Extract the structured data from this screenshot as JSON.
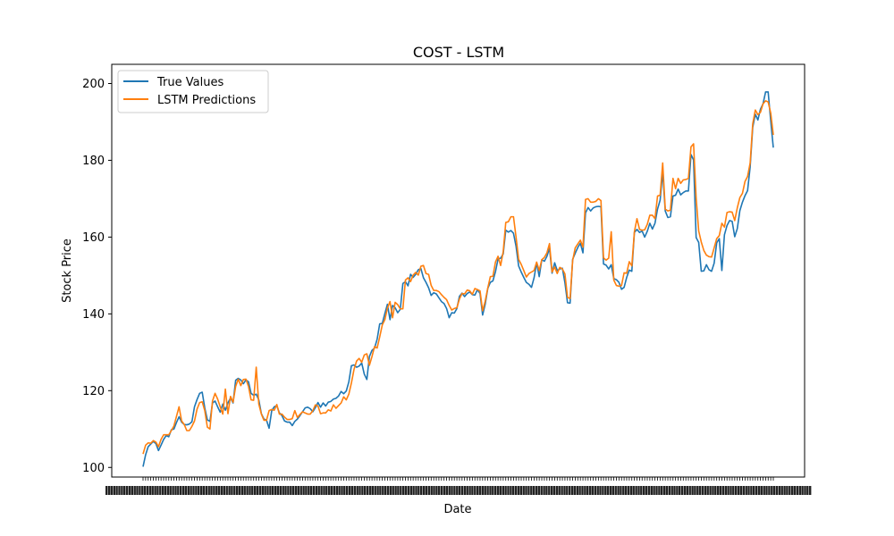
{
  "chart_data": {
    "type": "line",
    "title": "COST - LSTM",
    "xlabel": "Date",
    "ylabel": "Stock Price",
    "ylim": [
      97.5,
      205
    ],
    "yticks": [
      100,
      120,
      140,
      160,
      180,
      200
    ],
    "grid": false,
    "legend_position": "top-left",
    "x_tick_labels_note": "dense overlapping date labels, illegible",
    "series": [
      {
        "name": "True Values",
        "color": "#1f77b4",
        "values": [
          100.2,
          103.3,
          105.4,
          106.1,
          106.8,
          106.2,
          104.4,
          105.8,
          107.3,
          108.3,
          108.0,
          109.8,
          110.0,
          111.7,
          113.2,
          111.8,
          111.2,
          111.1,
          111.3,
          111.9,
          115.8,
          117.7,
          119.3,
          119.6,
          115.5,
          112.4,
          112.0,
          116.8,
          117.3,
          115.8,
          114.4,
          116.5,
          114.9,
          116.8,
          118.1,
          116.8,
          122.7,
          123.2,
          122.8,
          121.8,
          122.8,
          122.3,
          119.3,
          118.8,
          119.1,
          117.6,
          114.0,
          112.6,
          112.3,
          110.2,
          114.7,
          115.8,
          116.1,
          114.2,
          113.5,
          112.1,
          111.8,
          111.8,
          110.9,
          112.0,
          112.6,
          113.5,
          114.5,
          115.5,
          115.7,
          115.3,
          114.5,
          115.6,
          116.9,
          115.7,
          116.8,
          116.0,
          117.0,
          117.2,
          117.8,
          118.0,
          118.6,
          119.8,
          119.2,
          119.9,
          122.3,
          126.5,
          126.7,
          126.1,
          126.4,
          127.2,
          124.3,
          122.9,
          128.9,
          130.5,
          131.1,
          133.4,
          137.4,
          137.5,
          140.1,
          142.5,
          138.5,
          142.2,
          141.6,
          140.3,
          141.2,
          147.9,
          148.4,
          147.3,
          150.3,
          149.5,
          150.3,
          151.5,
          151.8,
          149.4,
          148.2,
          146.8,
          144.8,
          145.5,
          145.2,
          144.2,
          143.2,
          142.7,
          141.4,
          139.0,
          140.3,
          140.2,
          141.4,
          144.6,
          145.4,
          144.5,
          145.3,
          145.7,
          145.0,
          144.9,
          146.3,
          145.3,
          139.7,
          142.5,
          146.6,
          148.2,
          148.6,
          151.0,
          154.3,
          154.5,
          155.6,
          161.8,
          161.3,
          161.7,
          161.0,
          157.6,
          152.5,
          150.9,
          149.5,
          148.2,
          147.7,
          146.9,
          149.4,
          153.3,
          149.7,
          154.1,
          153.7,
          155.0,
          157.1,
          150.6,
          153.3,
          151.3,
          151.7,
          151.9,
          148.1,
          142.9,
          142.8,
          154.2,
          155.8,
          157.3,
          158.4,
          155.9,
          166.3,
          167.7,
          166.8,
          167.6,
          167.9,
          168.0,
          167.9,
          153.0,
          152.7,
          151.7,
          152.8,
          149.2,
          148.9,
          148.2,
          146.4,
          146.9,
          149.5,
          151.4,
          151.1,
          161.2,
          162.0,
          161.2,
          161.6,
          160.0,
          161.5,
          163.6,
          162.1,
          163.6,
          167.3,
          169.6,
          177.0,
          166.8,
          165.1,
          165.3,
          170.7,
          170.9,
          172.5,
          171.0,
          171.6,
          172.0,
          172.0,
          181.5,
          180.1,
          159.9,
          158.6,
          151.1,
          151.2,
          152.8,
          151.5,
          151.1,
          153.2,
          158.5,
          159.6,
          151.3,
          160.6,
          163.0,
          164.3,
          164.1,
          160.1,
          162.2,
          166.9,
          169.1,
          170.8,
          172.1,
          178.3,
          188.6,
          192.0,
          190.5,
          193.3,
          194.7,
          197.8,
          197.8,
          190.2,
          183.3
        ]
      },
      {
        "name": "LSTM Predictions",
        "color": "#ff7f0e",
        "values": [
          103.5,
          105.8,
          106.4,
          106.3,
          107.0,
          106.6,
          105.4,
          107.3,
          108.5,
          108.5,
          108.5,
          109.6,
          110.8,
          113.3,
          115.8,
          112.1,
          111.2,
          109.6,
          109.6,
          110.7,
          112.1,
          115.2,
          116.9,
          117.1,
          114.8,
          110.5,
          110.0,
          117.3,
          119.3,
          117.8,
          115.8,
          113.9,
          120.4,
          114.0,
          118.5,
          117.0,
          121.1,
          123.0,
          121.3,
          122.9,
          123.0,
          121.1,
          117.6,
          117.5,
          126.1,
          116.5,
          113.9,
          112.3,
          112.3,
          114.8,
          115.1,
          114.9,
          116.4,
          113.9,
          113.9,
          113.1,
          112.5,
          112.5,
          112.7,
          114.8,
          113.0,
          113.8,
          114.5,
          114.2,
          113.9,
          113.9,
          114.8,
          116.3,
          116.0,
          114.0,
          114.2,
          114.2,
          115.0,
          114.7,
          116.3,
          115.4,
          116.1,
          116.8,
          118.4,
          117.6,
          119.1,
          122.0,
          125.5,
          127.7,
          128.4,
          127.4,
          129.3,
          129.6,
          126.6,
          128.9,
          131.5,
          131.1,
          134.0,
          137.1,
          138.5,
          141.5,
          143.2,
          139.0,
          143.0,
          142.4,
          141.3,
          141.3,
          148.8,
          149.4,
          148.4,
          150.1,
          150.8,
          150.1,
          152.4,
          152.6,
          150.5,
          150.3,
          147.4,
          146.1,
          146.1,
          145.8,
          145.0,
          144.3,
          143.7,
          142.2,
          141.0,
          141.4,
          141.6,
          143.9,
          145.3,
          145.2,
          146.2,
          146.0,
          145.1,
          146.6,
          146.3,
          146.0,
          140.8,
          143.3,
          146.7,
          149.7,
          149.8,
          153.5,
          155.0,
          152.6,
          156.2,
          163.8,
          164.0,
          165.3,
          165.3,
          160.0,
          154.2,
          152.9,
          151.3,
          149.6,
          150.5,
          150.9,
          151.3,
          153.5,
          151.3,
          154.1,
          154.7,
          155.9,
          158.3,
          150.9,
          152.2,
          150.5,
          152.1,
          151.7,
          150.4,
          144.3,
          144.0,
          153.9,
          157.2,
          158.2,
          159.2,
          157.4,
          169.8,
          170.0,
          169.1,
          169.1,
          169.3,
          170.0,
          169.5,
          154.6,
          154.0,
          154.5,
          161.4,
          148.8,
          147.4,
          147.2,
          147.4,
          150.7,
          150.6,
          153.6,
          152.5,
          161.4,
          164.8,
          162.0,
          161.8,
          161.9,
          163.3,
          165.7,
          165.7,
          164.8,
          170.7,
          170.9,
          179.3,
          167.3,
          166.8,
          167.0,
          175.3,
          172.6,
          175.3,
          174.0,
          174.9,
          175.0,
          175.3,
          183.5,
          184.3,
          170.2,
          161.6,
          158.7,
          156.5,
          155.3,
          154.9,
          154.8,
          157.2,
          159.6,
          160.4,
          163.6,
          162.6,
          166.4,
          166.6,
          166.5,
          164.3,
          167.6,
          170.3,
          171.4,
          174.5,
          175.8,
          179.3,
          189.5,
          193.1,
          191.9,
          192.5,
          194.7,
          195.5,
          195.2,
          192.3,
          186.6
        ]
      }
    ]
  }
}
